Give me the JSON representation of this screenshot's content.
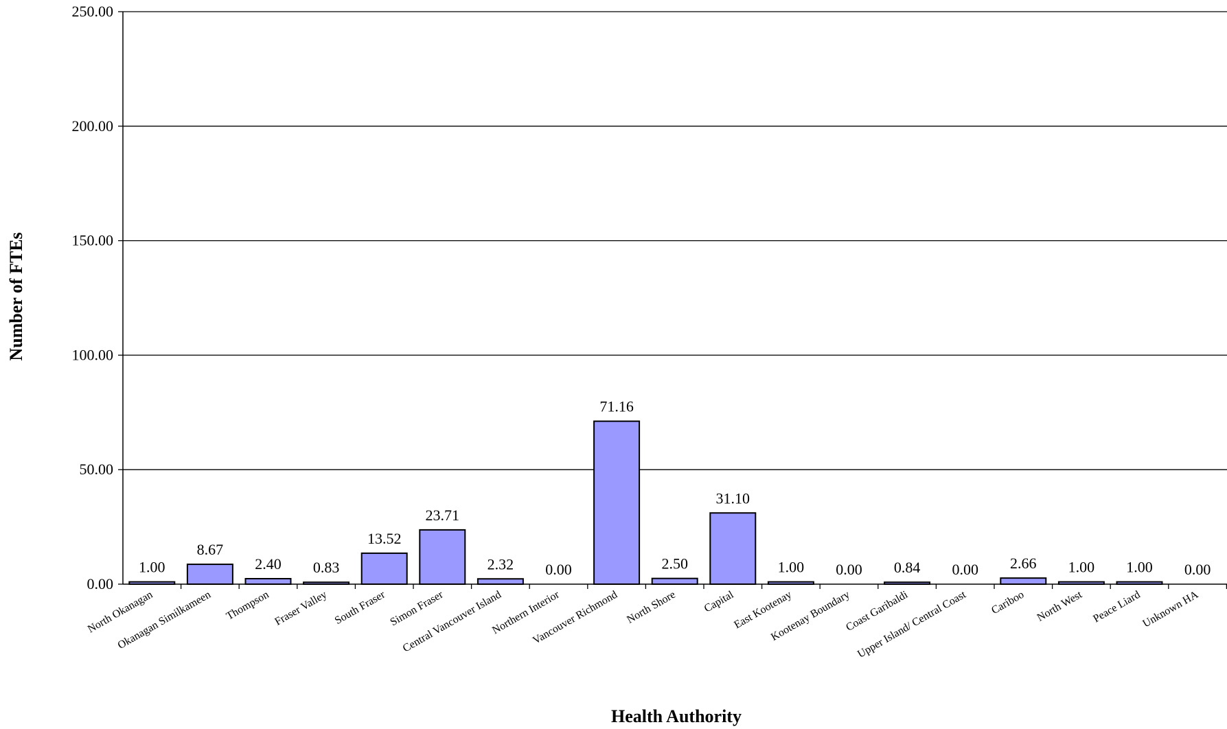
{
  "chart_data": {
    "type": "bar",
    "title": "",
    "xlabel": "Health Authority",
    "ylabel": "Number of FTEs",
    "ylim": [
      0,
      250
    ],
    "yticks": [
      "0.00",
      "50.00",
      "100.00",
      "150.00",
      "200.00",
      "250.00"
    ],
    "grid": true,
    "legend": "none",
    "bar_color": "#9999ff",
    "categories": [
      "North Okanagan",
      "Okanagan Similkameen",
      "Thompson",
      "Fraser Valley",
      "South Fraser",
      "Simon Fraser",
      "Central Vancouver Island",
      "Northern Interior",
      "Vancouver Richmond",
      "North Shore",
      "Capital",
      "East Kootenay",
      "Kootenay Boundary",
      "Coast Garibaldi",
      "Upper Island/ Central Coast",
      "Cariboo",
      "North West",
      "Peace Liard",
      "Unknown HA"
    ],
    "values": [
      1.0,
      8.67,
      2.4,
      0.83,
      13.52,
      23.71,
      2.32,
      0.0,
      71.16,
      2.5,
      31.1,
      1.0,
      0.0,
      0.84,
      0.0,
      2.66,
      1.0,
      1.0,
      0.0
    ],
    "value_labels": [
      "1.00",
      "8.67",
      "2.40",
      "0.83",
      "13.52",
      "23.71",
      "2.32",
      "0.00",
      "71.16",
      "2.50",
      "31.10",
      "1.00",
      "0.00",
      "0.84",
      "0.00",
      "2.66",
      "1.00",
      "1.00",
      "0.00"
    ]
  }
}
